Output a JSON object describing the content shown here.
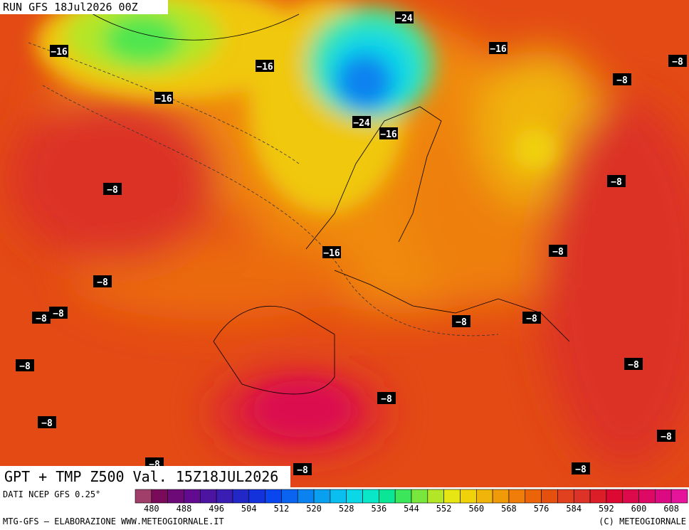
{
  "header": {
    "run": "RUN GFS 18Jul2026 00Z"
  },
  "footer": {
    "product": "GPT + TMP Z500 Val. 15Z18JUL2026",
    "source": "DATI NCEP GFS 0.25°",
    "credit": "MTG-GFS — ELABORAZIONE WWW.METEOGIORNALE.IT",
    "copyright": "(C) METEOGIORNALE"
  },
  "contour_labels": [
    "−16",
    "−16",
    "−16",
    "−16",
    "−16",
    "−16",
    "−24",
    "−24",
    "−8",
    "−8",
    "−8",
    "−8",
    "−8",
    "−8",
    "−8",
    "−8",
    "−8",
    "−8",
    "−8",
    "−8",
    "−8",
    "−8",
    "−8",
    "−8",
    "−8",
    "−8"
  ],
  "colorbar": {
    "ticks": [
      480,
      488,
      496,
      504,
      512,
      520,
      528,
      536,
      544,
      552,
      560,
      568,
      576,
      584,
      592,
      600,
      608
    ],
    "colors": [
      "#a0406a",
      "#7a0a5a",
      "#6e0a78",
      "#620a90",
      "#4c14a0",
      "#3a1eb4",
      "#2228c8",
      "#1432dc",
      "#0a46f0",
      "#0a64f0",
      "#0a82f0",
      "#0aa0f0",
      "#0abef0",
      "#0ad8e6",
      "#0ae6c8",
      "#0ae696",
      "#3ce65a",
      "#78e63c",
      "#b4e628",
      "#e6e614",
      "#f0d20a",
      "#f0b40a",
      "#f09a0a",
      "#f07d0a",
      "#eb640a",
      "#e6500f",
      "#e1411e",
      "#dc3228",
      "#dc1e28",
      "#dc0a32",
      "#dc0a4b",
      "#dc0a64",
      "#dc0a82",
      "#e6149b"
    ]
  }
}
